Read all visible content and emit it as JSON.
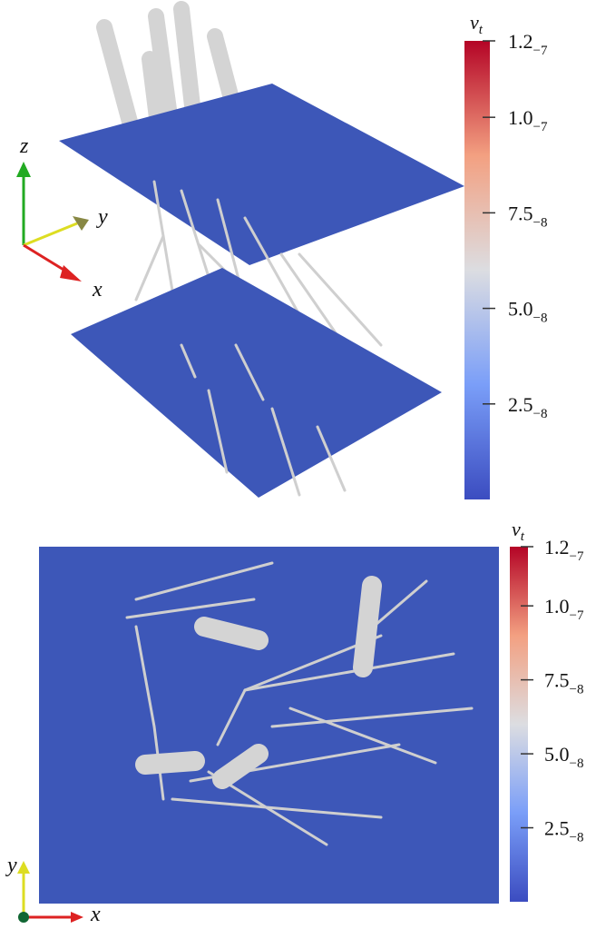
{
  "panels": [
    {
      "colorbar": {
        "symbol": "ν",
        "subscript": "t",
        "lim": [
          0,
          1.2e-07
        ],
        "ticks": [
          {
            "value": 1.2e-07,
            "label": "1.2",
            "exponent": "−7"
          },
          {
            "value": 1e-07,
            "label": "1.0",
            "exponent": "−7"
          },
          {
            "value": 7.5e-08,
            "label": "7.5",
            "exponent": "−8"
          },
          {
            "value": 5e-08,
            "label": "5.0",
            "exponent": "−8"
          },
          {
            "value": 2.5e-08,
            "label": "2.5",
            "exponent": "−8"
          }
        ]
      },
      "axes": [
        "z",
        "y",
        "x"
      ]
    },
    {
      "colorbar": {
        "symbol": "ν",
        "subscript": "t",
        "lim": [
          0,
          1.2e-07
        ],
        "ticks": [
          {
            "value": 1.2e-07,
            "label": "1.2",
            "exponent": "−7"
          },
          {
            "value": 1e-07,
            "label": "1.0",
            "exponent": "−7"
          },
          {
            "value": 7.5e-08,
            "label": "7.5",
            "exponent": "−8"
          },
          {
            "value": 5e-08,
            "label": "5.0",
            "exponent": "−8"
          },
          {
            "value": 2.5e-08,
            "label": "2.5",
            "exponent": "−8"
          }
        ]
      },
      "axes": [
        "y",
        "x"
      ]
    }
  ]
}
